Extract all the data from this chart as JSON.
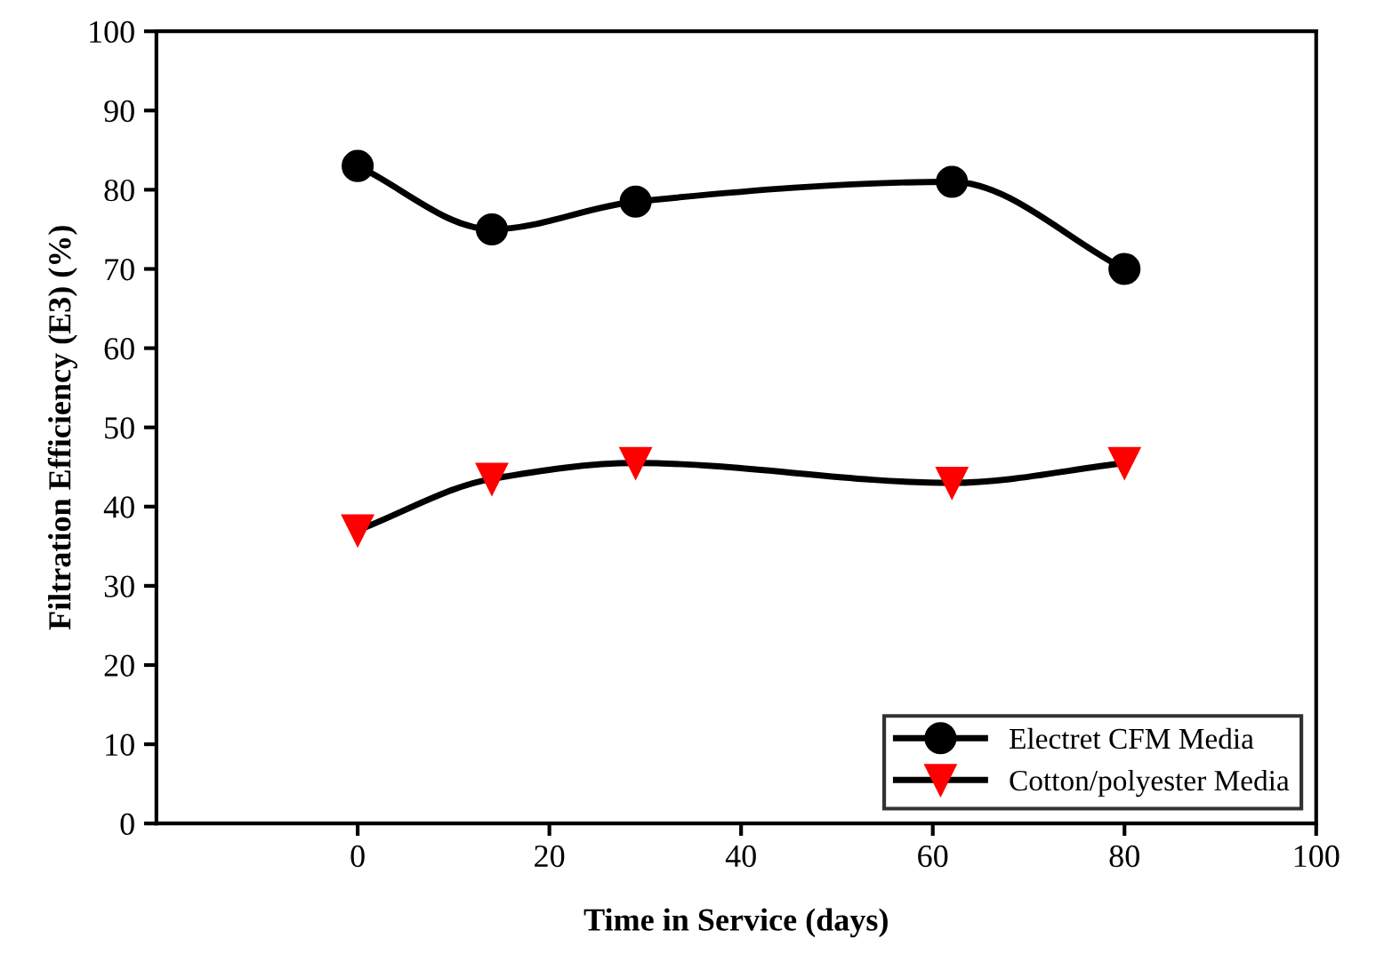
{
  "chart_data": {
    "type": "line",
    "xlabel": "Time in Service (days)",
    "ylabel": "Filtration Efficiency (E3) (%)",
    "series": [
      {
        "name": "Electret CFM Media",
        "color": "#000000",
        "marker": "circle",
        "x": [
          0,
          14,
          29,
          62,
          80
        ],
        "values": [
          83,
          75,
          78.5,
          81,
          70
        ]
      },
      {
        "name": "Cotton/polyester Media",
        "color": "#ff0000",
        "marker": "triangle",
        "x": [
          0,
          14,
          29,
          62,
          80
        ],
        "values": [
          37,
          43.5,
          45.5,
          43,
          45.5
        ]
      }
    ],
    "xlim": [
      -21,
      100
    ],
    "xticks": [
      0,
      20,
      40,
      60,
      80,
      100
    ],
    "ylim": [
      0,
      100
    ],
    "yticks": [
      0,
      10,
      20,
      30,
      40,
      50,
      60,
      70,
      80,
      90,
      100
    ],
    "grid": false,
    "legend": "bottom right",
    "line_style": "solid"
  }
}
